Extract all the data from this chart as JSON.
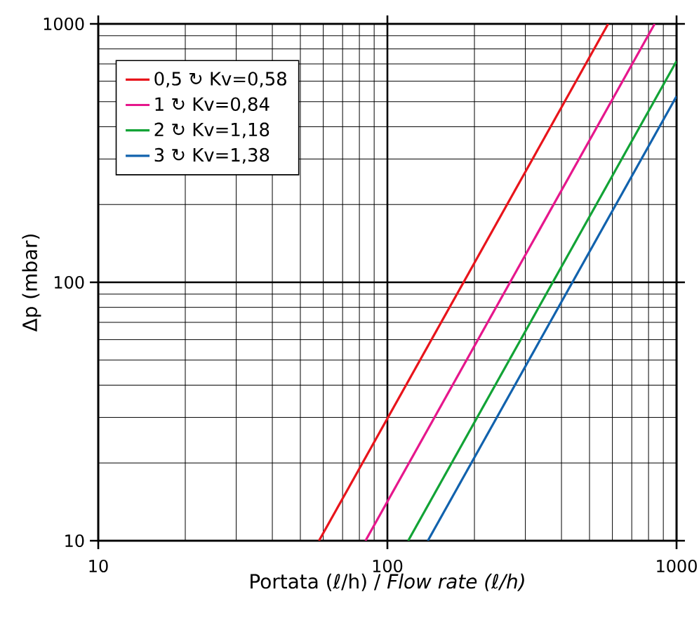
{
  "chart_data": {
    "type": "line",
    "xlabel": "Portata (ℓ/h) / *Flow rate (ℓ/h)*",
    "ylabel": "Δp (mbar)",
    "log": "xy",
    "xlim": [
      10,
      1000
    ],
    "ylim": [
      10,
      1000
    ],
    "xticks": [
      10,
      100,
      1000
    ],
    "yticks": [
      10,
      100,
      1000
    ],
    "grid": true,
    "legend": "top left",
    "marker": "none",
    "line_style": "solid",
    "series": [
      {
        "name": "0,5 ↻   Kv=0,58",
        "color": "#e8141b",
        "x": [
          58,
          580
        ],
        "values": [
          10,
          1000
        ]
      },
      {
        "name": "1 ↻   Kv=0,84",
        "color": "#e6178c",
        "x": [
          84,
          840
        ],
        "values": [
          10,
          1000
        ]
      },
      {
        "name": "2 ↻   Kv=1,18",
        "color": "#12a336",
        "x": [
          118,
          1000
        ],
        "values": [
          10,
          718
        ]
      },
      {
        "name": "3 ↻   Kv=1,38",
        "color": "#1162ad",
        "x": [
          138,
          1000
        ],
        "values": [
          10,
          525
        ]
      }
    ]
  }
}
